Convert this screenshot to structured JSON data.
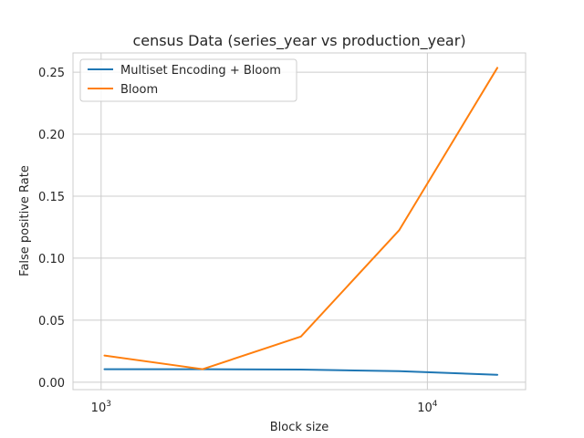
{
  "chart_data": {
    "type": "line",
    "title": "census Data (series_year vs production_year)",
    "xlabel": "Block size",
    "ylabel": "False positive Rate",
    "xscale": "log",
    "xlim": [
      820,
      20000
    ],
    "ylim": [
      -0.006,
      0.2655
    ],
    "x": [
      1024,
      2048,
      4096,
      8192,
      16384
    ],
    "x_ticks": [
      {
        "value": 1000,
        "base": "10",
        "exp": "3"
      },
      {
        "value": 10000,
        "base": "10",
        "exp": "4"
      }
    ],
    "y_ticks": [
      {
        "value": 0.0,
        "label": "0.00"
      },
      {
        "value": 0.05,
        "label": "0.05"
      },
      {
        "value": 0.1,
        "label": "0.10"
      },
      {
        "value": 0.15,
        "label": "0.15"
      },
      {
        "value": 0.2,
        "label": "0.20"
      },
      {
        "value": 0.25,
        "label": "0.25"
      }
    ],
    "grid": true,
    "legend_position": "top-left",
    "series": [
      {
        "name": "Multiset Encoding + Bloom",
        "color": "#1f77b4",
        "values": [
          0.0105,
          0.0105,
          0.0102,
          0.0089,
          0.006
        ]
      },
      {
        "name": "Bloom",
        "color": "#ff7f0e",
        "values": [
          0.0215,
          0.0105,
          0.0368,
          0.1225,
          0.2535
        ]
      }
    ]
  }
}
